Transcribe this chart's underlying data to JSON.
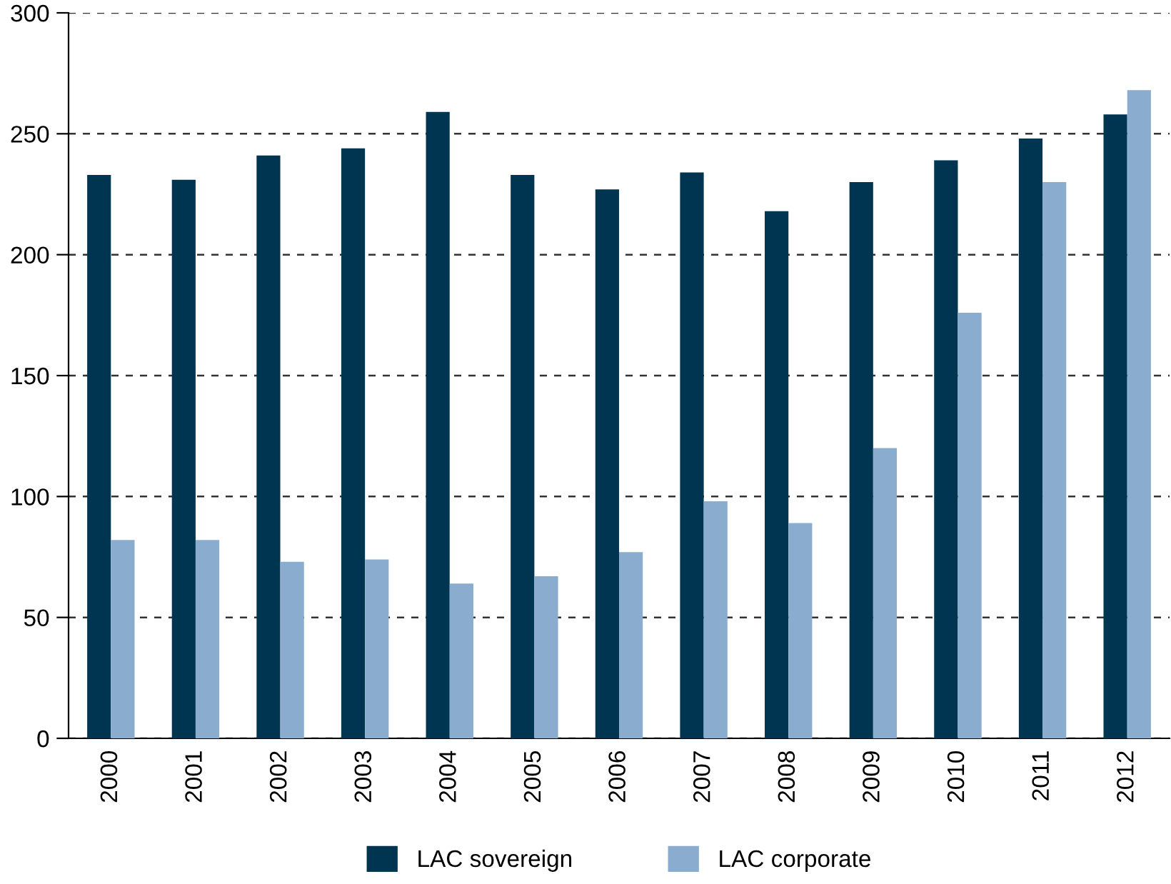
{
  "chart_data": {
    "type": "bar",
    "categories": [
      "2000",
      "2001",
      "2002",
      "2003",
      "2004",
      "2005",
      "2006",
      "2007",
      "2008",
      "2009",
      "2010",
      "2011",
      "2012"
    ],
    "series": [
      {
        "name": "LAC sovereign",
        "color": "#003552",
        "values": [
          233,
          231,
          241,
          244,
          259,
          233,
          227,
          234,
          218,
          230,
          239,
          248,
          258
        ]
      },
      {
        "name": "LAC corporate",
        "color": "#8aadcf",
        "values": [
          82,
          82,
          73,
          74,
          64,
          67,
          77,
          98,
          89,
          120,
          176,
          230,
          268
        ]
      }
    ],
    "ylim": [
      0,
      300
    ],
    "yticks": [
      0,
      50,
      100,
      150,
      200,
      250,
      300
    ],
    "grid": "y",
    "legend": "bottom"
  }
}
